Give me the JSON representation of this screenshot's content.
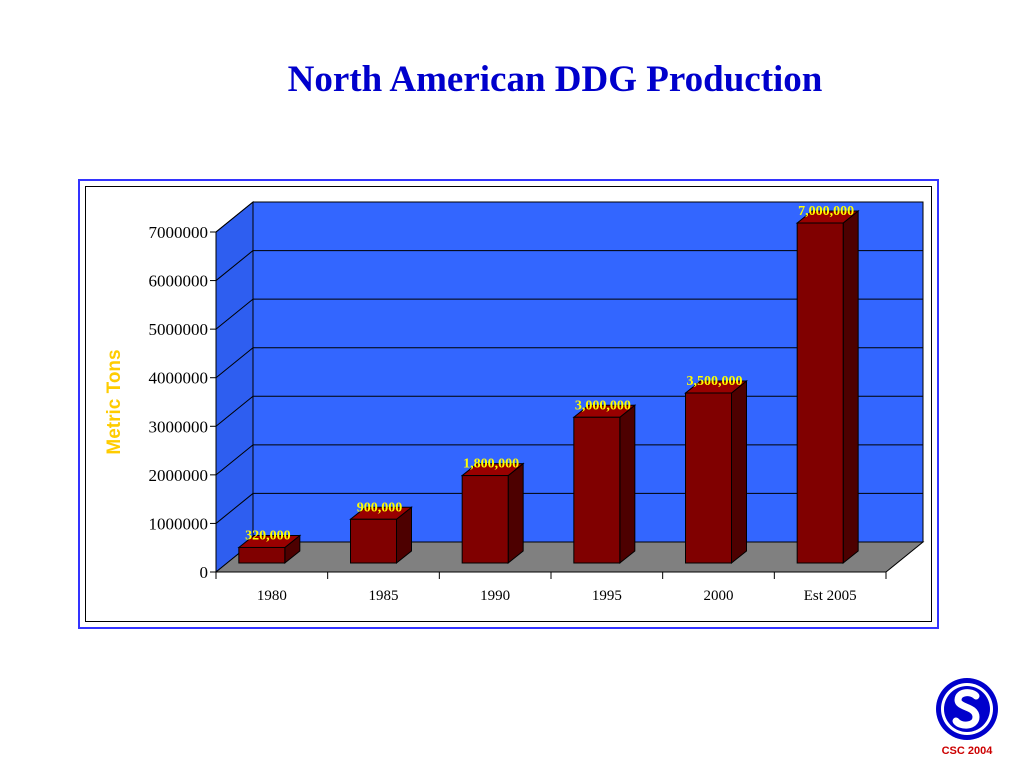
{
  "slide": {
    "title": "North American DDG Production",
    "footer": "CSC 2004"
  },
  "colors": {
    "title": "#0000cc",
    "back_wall": "#3366ff",
    "side_wall": "#2e5ef0",
    "floor": "#808080",
    "bar_front": "#800000",
    "bar_side": "#4d0000",
    "bar_top": "#990000",
    "data_label": "#ffff00",
    "ylabel": "#ffcc00",
    "frame": "#3333ff"
  },
  "logo": {
    "icon": "csc-s-logo-icon"
  },
  "chart_data": {
    "type": "bar",
    "style": "3d-column",
    "title": "",
    "xlabel": "",
    "ylabel": "Metric Tons",
    "categories": [
      "1980",
      "1985",
      "1990",
      "1995",
      "2000",
      "Est 2005"
    ],
    "values": [
      320000,
      900000,
      1800000,
      3000000,
      3500000,
      7000000
    ],
    "data_labels": [
      "320,000",
      "900,000",
      "1,800,000",
      "3,000,000",
      "3,500,000",
      "7,000,000"
    ],
    "yticks": [
      0,
      1000000,
      2000000,
      3000000,
      4000000,
      5000000,
      6000000,
      7000000
    ],
    "ytick_labels": [
      "0",
      "1000000",
      "2000000",
      "3000000",
      "4000000",
      "5000000",
      "6000000",
      "7000000"
    ],
    "ylim": [
      0,
      7000000
    ],
    "grid": true,
    "legend": "none"
  }
}
